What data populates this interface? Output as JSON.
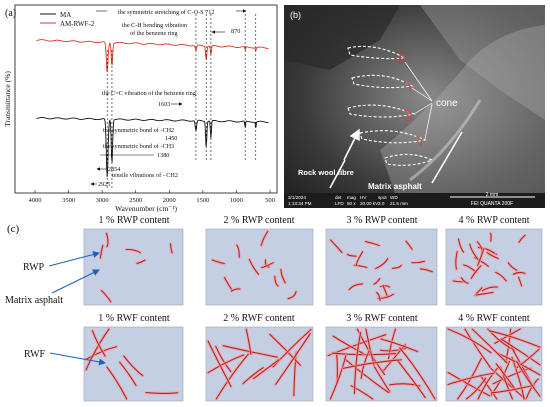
{
  "panel_a": {
    "label": "(a)",
    "legend": [
      "MA",
      "AM-RWF-2"
    ],
    "ylabel": "Transmittance (%)",
    "xlabel": "Wavenumber (cm⁻¹)",
    "xticks": [
      "4000",
      "3500",
      "3000",
      "2500",
      "2000",
      "1500",
      "1000",
      "500"
    ],
    "annotations": {
      "cos": "the symmetric stretching of C-O-S 712",
      "ch_bend_1": "the C-H bending vibration",
      "ch_bend_2": "of the benzene ring",
      "n870": "870",
      "cc": "the C=C vibration of the benzene ring",
      "n1603": "1603",
      "ch2_sym": "the symmetric bond of -CH2",
      "n1450": "1450",
      "ch3_sym": "the symmetric bond of -CH3",
      "n1380": "1380",
      "n2854": "2854",
      "tensile": "tensile vibrations of  - CH2",
      "n2925": "2925"
    }
  },
  "chart_data": {
    "type": "line",
    "xlabel": "Wavenumber (cm⁻¹)",
    "ylabel": "Transmittance (%)",
    "xlim": [
      4000,
      500
    ],
    "ticks_x": [
      4000,
      3500,
      3000,
      2500,
      2000,
      1500,
      1000,
      500
    ],
    "marked_peaks": [
      2925,
      2854,
      1603,
      1450,
      1380,
      870,
      712
    ],
    "series": [
      {
        "name": "MA",
        "color": "#111111"
      },
      {
        "name": "AM-RWF-2",
        "color": "#d9362b"
      }
    ]
  },
  "panel_b": {
    "label": "(b)",
    "cone": "cone",
    "fibre": "Rock wool fibre",
    "matrix": "Matrix asphalt",
    "scale": "2 mm",
    "meta_head": [
      "3/1/2024",
      "det",
      "mag",
      "HV",
      "spot",
      "WD"
    ],
    "meta_vals": [
      "1:13:34 PM",
      "LFD",
      "50 x",
      "20.00 kV",
      "3.0",
      "21.5 mm"
    ],
    "instrument": "FEI QUANTA 200F"
  },
  "panel_c": {
    "label": "(c)",
    "rwp_titles": [
      "1 % RWP content",
      "2 % RWP content",
      "3 % RWP content",
      "4 % RWP content"
    ],
    "rwf_titles": [
      "1 % RWF content",
      "2 % RWF content",
      "3 % RWF content",
      "4 % RWF content"
    ],
    "label_rwp": "RWP",
    "label_matrix": "Matrix asphalt",
    "label_rwf": "RWF",
    "colors": {
      "box": "#c5cfe3",
      "fiber": "#b7241c",
      "glow": "#f2a0a8"
    }
  }
}
